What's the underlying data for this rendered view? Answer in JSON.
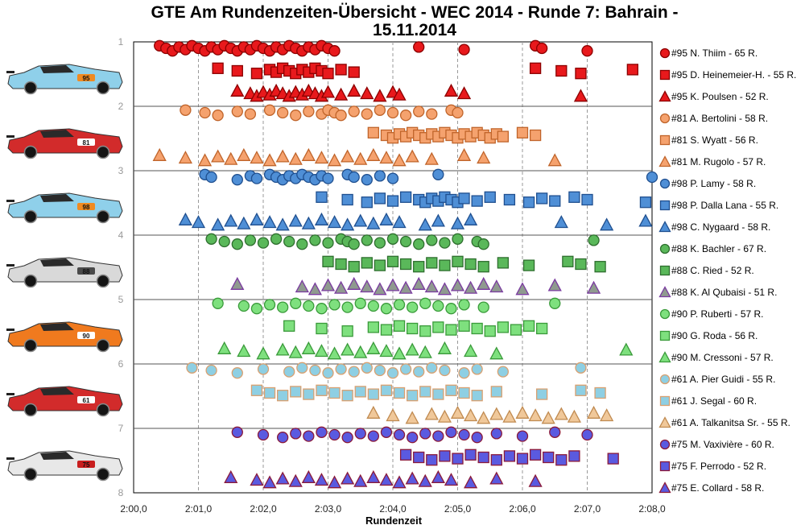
{
  "chart_data": {
    "type": "scatter",
    "title_line1": "GTE Am Rundenzeiten-Übersicht - WEC 2014 - Runde 7: Bahrain -",
    "title_line2": "15.11.2014",
    "xlabel": "Rundenzeit",
    "xlim": [
      "2:00,0",
      "2:08,0"
    ],
    "x_ticks": [
      "2:00,0",
      "2:01,0",
      "2:02,0",
      "2:03,0",
      "2:04,0",
      "2:05,0",
      "2:06,0",
      "2:07,0",
      "2:08,0"
    ],
    "y_ticks": [
      "1",
      "2",
      "3",
      "4",
      "5",
      "6",
      "7",
      "8"
    ],
    "grid": "vertical dashed",
    "legend_position": "right",
    "series": [
      {
        "name": "#95 N. Thiim - 65 R.",
        "car": 95,
        "marker": "circle",
        "color": "#e8191c",
        "edge": "#8b0000",
        "times": [
          120.4,
          120.5,
          120.6,
          120.7,
          120.8,
          120.9,
          121.0,
          121.1,
          121.2,
          121.3,
          121.4,
          121.5,
          121.6,
          121.7,
          121.8,
          121.9,
          122.0,
          122.1,
          122.2,
          122.3,
          122.4,
          122.5,
          122.6,
          122.7,
          122.8,
          122.9,
          123.0,
          123.1,
          124.4,
          125.1,
          126.2,
          126.3,
          127.0
        ]
      },
      {
        "name": "#95 D. Heinemeier-H. - 55 R.",
        "car": 95,
        "marker": "square",
        "color": "#e8191c",
        "edge": "#8b0000",
        "times": [
          121.3,
          121.6,
          121.9,
          122.1,
          122.2,
          122.3,
          122.4,
          122.5,
          122.6,
          122.7,
          122.8,
          122.9,
          123.0,
          123.2,
          123.4,
          126.2,
          126.6,
          126.9,
          127.7
        ]
      },
      {
        "name": "#95 K. Poulsen - 52 R.",
        "car": 95,
        "marker": "triangle",
        "color": "#e8191c",
        "edge": "#8b0000",
        "times": [
          121.6,
          121.8,
          121.9,
          122.0,
          122.1,
          122.2,
          122.3,
          122.4,
          122.5,
          122.6,
          122.7,
          122.8,
          122.9,
          123.0,
          123.2,
          123.4,
          123.6,
          123.8,
          124.0,
          124.1,
          124.9,
          125.1,
          126.9
        ]
      },
      {
        "name": "#81 A. Bertolini - 58 R.",
        "car": 81,
        "marker": "circle",
        "color": "#f5a26e",
        "edge": "#c0642a",
        "times": [
          120.8,
          121.1,
          121.3,
          121.6,
          121.8,
          122.1,
          122.3,
          122.5,
          122.7,
          122.9,
          123.0,
          123.1,
          123.2,
          123.4,
          123.6,
          123.8,
          124.0,
          124.2,
          124.4,
          124.6,
          124.9,
          125.0
        ]
      },
      {
        "name": "#81 S. Wyatt - 56 R.",
        "car": 81,
        "marker": "square",
        "color": "#f5a26e",
        "edge": "#c0642a",
        "times": [
          123.7,
          123.9,
          124.0,
          124.1,
          124.2,
          124.3,
          124.4,
          124.5,
          124.6,
          124.7,
          124.8,
          124.9,
          125.0,
          125.1,
          125.2,
          125.3,
          125.4,
          125.5,
          125.6,
          125.7,
          126.0,
          126.2
        ]
      },
      {
        "name": "#81 M. Rugolo - 57 R.",
        "car": 81,
        "marker": "triangle",
        "color": "#f5a26e",
        "edge": "#c0642a",
        "times": [
          120.4,
          120.8,
          121.1,
          121.3,
          121.5,
          121.7,
          121.9,
          122.1,
          122.3,
          122.5,
          122.7,
          122.9,
          123.1,
          123.3,
          123.5,
          123.7,
          123.9,
          124.1,
          124.3,
          124.6,
          125.1,
          125.4,
          126.5
        ]
      },
      {
        "name": "#98 P. Lamy - 58 R.",
        "car": 98,
        "marker": "circle",
        "color": "#4f8fd6",
        "edge": "#1f4f8f",
        "times": [
          121.1,
          121.2,
          121.6,
          121.8,
          121.9,
          122.1,
          122.2,
          122.3,
          122.4,
          122.5,
          122.6,
          122.7,
          122.8,
          122.9,
          123.0,
          123.3,
          123.4,
          123.6,
          123.8,
          124.0,
          124.7,
          128.0
        ]
      },
      {
        "name": "#98 P. Dalla Lana - 55 R.",
        "car": 98,
        "marker": "square",
        "color": "#4f8fd6",
        "edge": "#1f4f8f",
        "times": [
          122.9,
          123.3,
          123.6,
          123.8,
          124.0,
          124.2,
          124.4,
          124.5,
          124.6,
          124.7,
          124.8,
          124.9,
          125.0,
          125.1,
          125.3,
          125.5,
          125.8,
          126.1,
          126.3,
          126.5,
          126.8,
          127.0,
          127.9
        ]
      },
      {
        "name": "#98 C. Nygaard - 58 R.",
        "car": 98,
        "marker": "triangle",
        "color": "#4f8fd6",
        "edge": "#1f4f8f",
        "times": [
          120.8,
          121.0,
          121.3,
          121.5,
          121.7,
          121.9,
          122.1,
          122.3,
          122.5,
          122.7,
          122.9,
          123.1,
          123.3,
          123.5,
          123.7,
          123.9,
          124.1,
          124.5,
          124.7,
          125.0,
          125.2,
          126.6,
          127.3,
          127.9
        ]
      },
      {
        "name": "#88 K. Bachler - 67 R.",
        "car": 88,
        "marker": "circle",
        "color": "#5ab85a",
        "edge": "#2e6e2e",
        "times": [
          121.2,
          121.4,
          121.6,
          121.8,
          122.0,
          122.2,
          122.4,
          122.6,
          122.8,
          123.0,
          123.2,
          123.3,
          123.4,
          123.6,
          123.8,
          124.0,
          124.2,
          124.4,
          124.6,
          124.8,
          125.0,
          125.3,
          125.4,
          127.1
        ]
      },
      {
        "name": "#88 C. Ried - 52 R.",
        "car": 88,
        "marker": "square",
        "color": "#5ab85a",
        "edge": "#2e6e2e",
        "times": [
          123.0,
          123.2,
          123.4,
          123.6,
          123.8,
          124.0,
          124.2,
          124.4,
          124.6,
          124.8,
          125.0,
          125.2,
          125.4,
          125.7,
          126.1,
          126.7,
          126.9,
          127.2
        ]
      },
      {
        "name": "#88 K. Al Qubaisi - 51 R.",
        "car": 88,
        "marker": "triangle",
        "color": "#8f9a8f",
        "edge": "#7a3aa0",
        "times": [
          121.6,
          122.6,
          122.8,
          123.0,
          123.2,
          123.4,
          123.6,
          123.8,
          124.0,
          124.2,
          124.4,
          124.6,
          124.8,
          125.0,
          125.2,
          125.4,
          125.6,
          126.0,
          126.5,
          127.1
        ]
      },
      {
        "name": "#90 P. Ruberti - 57 R.",
        "car": 90,
        "marker": "circle",
        "color": "#7ee07e",
        "edge": "#3a9a3a",
        "times": [
          121.3,
          121.7,
          121.9,
          122.1,
          122.3,
          122.5,
          122.7,
          122.9,
          123.1,
          123.3,
          123.5,
          123.7,
          123.9,
          124.1,
          124.3,
          124.5,
          124.7,
          124.9,
          125.1,
          125.4,
          126.5
        ]
      },
      {
        "name": "#90 G. Roda - 56 R.",
        "car": 90,
        "marker": "square",
        "color": "#7ee07e",
        "edge": "#3a9a3a",
        "times": [
          122.4,
          122.9,
          123.3,
          123.7,
          123.9,
          124.1,
          124.3,
          124.5,
          124.7,
          124.9,
          125.1,
          125.3,
          125.5,
          125.7,
          125.9,
          126.1,
          126.3
        ]
      },
      {
        "name": "#90 M. Cressoni - 57 R.",
        "car": 90,
        "marker": "triangle",
        "color": "#7ee07e",
        "edge": "#3a9a3a",
        "times": [
          121.4,
          121.7,
          122.0,
          122.3,
          122.5,
          122.7,
          122.9,
          123.1,
          123.3,
          123.5,
          123.7,
          123.9,
          124.1,
          124.3,
          124.5,
          124.8,
          125.2,
          125.6,
          127.6
        ]
      },
      {
        "name": "#61 A. Pier Guidi - 55 R.",
        "car": 61,
        "marker": "circle",
        "color": "#8ecfe3",
        "edge": "#d9a070",
        "times": [
          120.9,
          121.2,
          121.6,
          122.0,
          122.4,
          122.6,
          122.8,
          123.0,
          123.2,
          123.4,
          123.6,
          123.8,
          124.0,
          124.2,
          124.4,
          124.6,
          124.8,
          125.1,
          125.3,
          125.7,
          126.9
        ]
      },
      {
        "name": "#61 J. Segal - 60 R.",
        "car": 61,
        "marker": "square",
        "color": "#8ecfe3",
        "edge": "#d9a070",
        "times": [
          121.9,
          122.1,
          122.3,
          122.5,
          122.7,
          122.9,
          123.1,
          123.3,
          123.5,
          123.7,
          123.9,
          124.1,
          124.3,
          124.5,
          124.7,
          124.9,
          125.1,
          125.3,
          125.6,
          126.3,
          126.9,
          127.2
        ]
      },
      {
        "name": "#61 A. Talkanitsa Sr. - 55 R.",
        "car": 61,
        "marker": "triangle",
        "color": "#f0c89a",
        "edge": "#c08a50",
        "times": [
          123.7,
          124.0,
          124.3,
          124.6,
          124.8,
          125.0,
          125.2,
          125.4,
          125.6,
          125.8,
          126.0,
          126.2,
          126.4,
          126.6,
          126.8,
          127.1,
          127.3
        ]
      },
      {
        "name": "#75 M. Vaxivière - 60 R.",
        "car": 75,
        "marker": "circle",
        "color": "#5a5ae0",
        "edge": "#8b1a3a",
        "times": [
          121.6,
          122.0,
          122.3,
          122.5,
          122.7,
          122.9,
          123.1,
          123.3,
          123.5,
          123.7,
          123.9,
          124.1,
          124.3,
          124.5,
          124.7,
          124.9,
          125.1,
          125.3,
          125.6,
          126.0,
          126.5,
          127.0
        ]
      },
      {
        "name": "#75 F. Perrodo - 52 R.",
        "car": 75,
        "marker": "square",
        "color": "#5a5ae0",
        "edge": "#8b1a3a",
        "times": [
          124.2,
          124.4,
          124.6,
          124.8,
          125.0,
          125.2,
          125.4,
          125.6,
          125.8,
          126.0,
          126.2,
          126.4,
          126.6,
          126.8,
          127.4
        ]
      },
      {
        "name": "#75 E. Collard - 58 R.",
        "car": 75,
        "marker": "triangle",
        "color": "#5a5ae0",
        "edge": "#8b1a3a",
        "times": [
          121.5,
          121.9,
          122.1,
          122.3,
          122.5,
          122.7,
          122.9,
          123.1,
          123.3,
          123.5,
          123.7,
          123.9,
          124.1,
          124.3,
          124.5,
          124.7,
          124.9,
          125.2,
          125.6,
          126.2
        ]
      }
    ],
    "cars": [
      {
        "number": "95",
        "body": "#8fd0ea",
        "accent": "#f08a20"
      },
      {
        "number": "81",
        "body": "#d22b2b",
        "accent": "#ffffff"
      },
      {
        "number": "98",
        "body": "#8fd0ea",
        "accent": "#f08a20"
      },
      {
        "number": "88",
        "body": "#d9d9d9",
        "accent": "#4a4a4a"
      },
      {
        "number": "90",
        "body": "#f07a1e",
        "accent": "#ffffff"
      },
      {
        "number": "61",
        "body": "#d22b2b",
        "accent": "#ffffff"
      },
      {
        "number": "75",
        "body": "#e8e8e8",
        "accent": "#c81e1e"
      }
    ]
  }
}
